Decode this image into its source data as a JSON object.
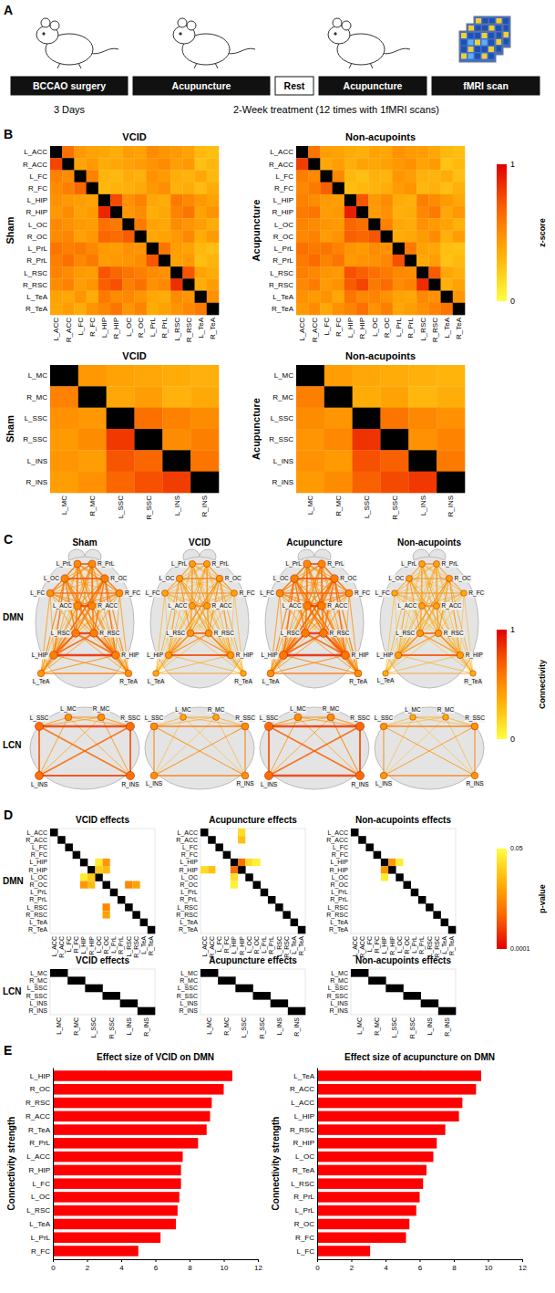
{
  "panel_labels": [
    "A",
    "B",
    "C",
    "D",
    "E"
  ],
  "timeline": {
    "stages": [
      "BCCAO surgery",
      "Acupuncture",
      "Rest",
      "Acupuncture",
      "fMRI scan"
    ],
    "durations": [
      "3 Days",
      "2-Week treatment (12 times with 1fMRI scans)"
    ]
  },
  "networks": [
    {
      "name": "DMN",
      "labels": [
        "L_ACC",
        "R_ACC",
        "L_FC",
        "R_FC",
        "L_HIP",
        "R_HIP",
        "L_OC",
        "R_OC",
        "L_PrL",
        "R_PrL",
        "L_RSC",
        "R_RSC",
        "L_TeA",
        "R_TeA"
      ]
    },
    {
      "name": "LCN",
      "labels": [
        "L_MC",
        "R_MC",
        "L_SSC",
        "R_SSC",
        "L_INS",
        "R_INS"
      ]
    }
  ],
  "z_colorbar": {
    "title": "z-score",
    "range": [
      0,
      1
    ],
    "ticks": [
      1,
      0
    ]
  },
  "p_colorbar": {
    "title": "p-value",
    "range": [
      0.0001,
      0.05
    ],
    "ticks": [
      0.05,
      0.0001
    ],
    "log": true
  },
  "chart_data": [
    {
      "type": "heatmap",
      "network": "DMN",
      "title": "VCID",
      "ylabel": "Sham",
      "values": [
        [
          null,
          0.62,
          0.45,
          0.4,
          0.38,
          0.35,
          0.42,
          0.4,
          0.5,
          0.46,
          0.44,
          0.4,
          0.3,
          0.28
        ],
        [
          0.78,
          null,
          0.4,
          0.44,
          0.36,
          0.38,
          0.4,
          0.43,
          0.47,
          0.5,
          0.42,
          0.45,
          0.27,
          0.31
        ],
        [
          0.55,
          0.5,
          null,
          0.55,
          0.32,
          0.3,
          0.36,
          0.34,
          0.48,
          0.44,
          0.35,
          0.33,
          0.38,
          0.3
        ],
        [
          0.5,
          0.56,
          0.66,
          null,
          0.3,
          0.33,
          0.34,
          0.37,
          0.45,
          0.49,
          0.33,
          0.36,
          0.29,
          0.36
        ],
        [
          0.48,
          0.45,
          0.42,
          0.4,
          null,
          0.76,
          0.48,
          0.55,
          0.38,
          0.36,
          0.58,
          0.52,
          0.45,
          0.4
        ],
        [
          0.45,
          0.5,
          0.4,
          0.43,
          0.88,
          null,
          0.46,
          0.5,
          0.35,
          0.38,
          0.54,
          0.6,
          0.4,
          0.47
        ],
        [
          0.52,
          0.48,
          0.44,
          0.42,
          0.62,
          0.58,
          null,
          0.58,
          0.4,
          0.38,
          0.5,
          0.46,
          0.42,
          0.36
        ],
        [
          0.5,
          0.53,
          0.41,
          0.45,
          0.66,
          0.64,
          0.7,
          null,
          0.38,
          0.4,
          0.45,
          0.52,
          0.36,
          0.44
        ],
        [
          0.6,
          0.56,
          0.58,
          0.52,
          0.44,
          0.42,
          0.48,
          0.46,
          null,
          0.6,
          0.42,
          0.4,
          0.3,
          0.28
        ],
        [
          0.56,
          0.62,
          0.52,
          0.58,
          0.42,
          0.45,
          0.46,
          0.5,
          0.72,
          null,
          0.4,
          0.44,
          0.28,
          0.32
        ],
        [
          0.54,
          0.5,
          0.44,
          0.42,
          0.72,
          0.66,
          0.6,
          0.56,
          0.5,
          0.48,
          null,
          0.72,
          0.4,
          0.36
        ],
        [
          0.5,
          0.55,
          0.42,
          0.46,
          0.68,
          0.74,
          0.56,
          0.62,
          0.48,
          0.52,
          0.85,
          null,
          0.36,
          0.42
        ],
        [
          0.4,
          0.38,
          0.46,
          0.36,
          0.58,
          0.5,
          0.52,
          0.46,
          0.38,
          0.36,
          0.5,
          0.46,
          null,
          0.48
        ],
        [
          0.38,
          0.42,
          0.36,
          0.46,
          0.52,
          0.6,
          0.46,
          0.54,
          0.36,
          0.4,
          0.46,
          0.52,
          0.58,
          null
        ]
      ]
    },
    {
      "type": "heatmap",
      "network": "DMN",
      "title": "Non-acupoints",
      "ylabel": "Acupuncture",
      "values": [
        [
          null,
          0.6,
          0.42,
          0.4,
          0.36,
          0.34,
          0.4,
          0.38,
          0.48,
          0.44,
          0.42,
          0.38,
          0.3,
          0.28
        ],
        [
          0.8,
          null,
          0.38,
          0.42,
          0.34,
          0.4,
          0.38,
          0.41,
          0.45,
          0.48,
          0.4,
          0.44,
          0.26,
          0.3
        ],
        [
          0.56,
          0.52,
          null,
          0.52,
          0.3,
          0.28,
          0.34,
          0.32,
          0.46,
          0.42,
          0.34,
          0.32,
          0.36,
          0.28
        ],
        [
          0.52,
          0.58,
          0.68,
          null,
          0.28,
          0.31,
          0.32,
          0.35,
          0.43,
          0.47,
          0.31,
          0.34,
          0.28,
          0.34
        ],
        [
          0.55,
          0.5,
          0.44,
          0.42,
          null,
          0.72,
          0.45,
          0.5,
          0.36,
          0.34,
          0.56,
          0.5,
          0.44,
          0.38
        ],
        [
          0.58,
          0.6,
          0.42,
          0.45,
          0.9,
          null,
          0.44,
          0.48,
          0.34,
          0.36,
          0.52,
          0.58,
          0.38,
          0.45
        ],
        [
          0.54,
          0.5,
          0.46,
          0.44,
          0.66,
          0.62,
          null,
          0.55,
          0.38,
          0.36,
          0.48,
          0.44,
          0.4,
          0.34
        ],
        [
          0.52,
          0.55,
          0.43,
          0.47,
          0.68,
          0.66,
          0.72,
          null,
          0.36,
          0.38,
          0.44,
          0.5,
          0.34,
          0.42
        ],
        [
          0.62,
          0.58,
          0.6,
          0.54,
          0.46,
          0.44,
          0.5,
          0.48,
          null,
          0.58,
          0.4,
          0.38,
          0.28,
          0.26
        ],
        [
          0.58,
          0.64,
          0.54,
          0.6,
          0.44,
          0.47,
          0.48,
          0.52,
          0.74,
          null,
          0.38,
          0.42,
          0.26,
          0.3
        ],
        [
          0.56,
          0.52,
          0.46,
          0.44,
          0.74,
          0.68,
          0.62,
          0.58,
          0.52,
          0.5,
          null,
          0.7,
          0.38,
          0.34
        ],
        [
          0.52,
          0.57,
          0.44,
          0.48,
          0.7,
          0.78,
          0.58,
          0.64,
          0.5,
          0.54,
          0.86,
          null,
          0.34,
          0.4
        ],
        [
          0.48,
          0.44,
          0.48,
          0.38,
          0.6,
          0.52,
          0.54,
          0.48,
          0.4,
          0.38,
          0.52,
          0.48,
          null,
          0.46
        ],
        [
          0.44,
          0.5,
          0.38,
          0.48,
          0.54,
          0.62,
          0.48,
          0.56,
          0.38,
          0.42,
          0.48,
          0.54,
          0.6,
          null
        ]
      ]
    },
    {
      "type": "heatmap",
      "network": "LCN",
      "title": "VCID",
      "ylabel": "Sham",
      "values": [
        [
          null,
          0.45,
          0.4,
          0.38,
          0.36,
          0.34
        ],
        [
          0.55,
          null,
          0.38,
          0.42,
          0.33,
          0.37
        ],
        [
          0.48,
          0.45,
          null,
          0.62,
          0.55,
          0.5
        ],
        [
          0.44,
          0.5,
          0.82,
          null,
          0.5,
          0.56
        ],
        [
          0.46,
          0.42,
          0.72,
          0.66,
          null,
          0.6
        ],
        [
          0.42,
          0.48,
          0.66,
          0.74,
          0.8,
          null
        ]
      ]
    },
    {
      "type": "heatmap",
      "network": "LCN",
      "title": "Non-acupoints",
      "ylabel": "Acupuncture",
      "values": [
        [
          null,
          0.42,
          0.38,
          0.36,
          0.34,
          0.32
        ],
        [
          0.56,
          null,
          0.36,
          0.4,
          0.31,
          0.35
        ],
        [
          0.5,
          0.46,
          null,
          0.6,
          0.52,
          0.48
        ],
        [
          0.46,
          0.52,
          0.84,
          null,
          0.48,
          0.54
        ],
        [
          0.48,
          0.44,
          0.74,
          0.68,
          null,
          0.58
        ],
        [
          0.44,
          0.5,
          0.68,
          0.76,
          0.82,
          null
        ]
      ]
    },
    {
      "type": "network",
      "groups": [
        "Sham",
        "VCID",
        "Acupuncture",
        "Non-acupoints"
      ],
      "colorbar": {
        "title": "Connectivity",
        "range": [
          0,
          1
        ],
        "ticks": [
          1,
          0
        ]
      }
    },
    {
      "type": "heatmap",
      "network": "DMN",
      "title": "VCID effects",
      "cells": [
        {
          "row": 4,
          "col": 6,
          "p": 0.03
        },
        {
          "row": 4,
          "col": 7,
          "p": 0.003
        },
        {
          "row": 5,
          "col": 6,
          "p": 0.012
        },
        {
          "row": 5,
          "col": 7,
          "p": 0.008
        },
        {
          "row": 7,
          "col": 10,
          "p": 0.002
        },
        {
          "row": 7,
          "col": 11,
          "p": 0.004
        }
      ]
    },
    {
      "type": "heatmap",
      "network": "DMN",
      "title": "Acupuncture effects",
      "cells": [
        {
          "row": 0,
          "col": 5,
          "p": 0.02
        },
        {
          "row": 1,
          "col": 5,
          "p": 0.01
        },
        {
          "row": 4,
          "col": 5,
          "p": 0.001
        },
        {
          "row": 4,
          "col": 6,
          "p": 0.02
        },
        {
          "row": 4,
          "col": 7,
          "p": 0.035
        }
      ]
    },
    {
      "type": "heatmap",
      "network": "DMN",
      "title": "Non-acupoints effects",
      "cells": [
        {
          "row": 4,
          "col": 5,
          "p": 0.003
        },
        {
          "row": 4,
          "col": 6,
          "p": 0.03
        }
      ]
    },
    {
      "type": "heatmap",
      "network": "LCN",
      "title": "VCID effects",
      "cells": []
    },
    {
      "type": "heatmap",
      "network": "LCN",
      "title": "Acupuncture effects",
      "cells": []
    },
    {
      "type": "heatmap",
      "network": "LCN",
      "title": "Non-acupoints effects",
      "cells": []
    },
    {
      "type": "bar",
      "orientation": "horizontal",
      "title": "Effect size of VCID on DMN",
      "ylabel": "Connectivity strength",
      "categories": [
        "L_HIP",
        "R_OC",
        "R_RSC",
        "R_ACC",
        "R_TeA",
        "R_PrL",
        "L_ACC",
        "R_HIP",
        "L_FC",
        "L_OC",
        "L_RSC",
        "L_TeA",
        "L_PrL",
        "R_FC"
      ],
      "values": [
        10.5,
        10.0,
        9.3,
        9.2,
        9.0,
        8.5,
        7.6,
        7.5,
        7.5,
        7.4,
        7.3,
        7.2,
        6.3,
        5.0
      ],
      "color": "#ff0000",
      "xlim": [
        0,
        12
      ],
      "xticks": [
        0,
        2,
        4,
        6,
        8,
        10,
        12
      ]
    },
    {
      "type": "bar",
      "orientation": "horizontal",
      "title": "Effect size of acupuncture on DMN",
      "ylabel": "Connectivity strength",
      "categories": [
        "L_TeA",
        "R_ACC",
        "L_ACC",
        "L_HIP",
        "R_RSC",
        "R_HIP",
        "L_OC",
        "R_TeA",
        "L_RSC",
        "R_PrL",
        "L_PrL",
        "R_OC",
        "R_FC",
        "L_FC"
      ],
      "values": [
        9.6,
        9.3,
        8.5,
        8.3,
        7.5,
        7.0,
        6.8,
        6.4,
        6.2,
        6.0,
        5.8,
        5.4,
        5.2,
        3.1
      ],
      "color": "#ff0000",
      "xlim": [
        0,
        12
      ],
      "xticks": [
        0,
        2,
        4,
        6,
        8,
        10,
        12
      ]
    }
  ]
}
